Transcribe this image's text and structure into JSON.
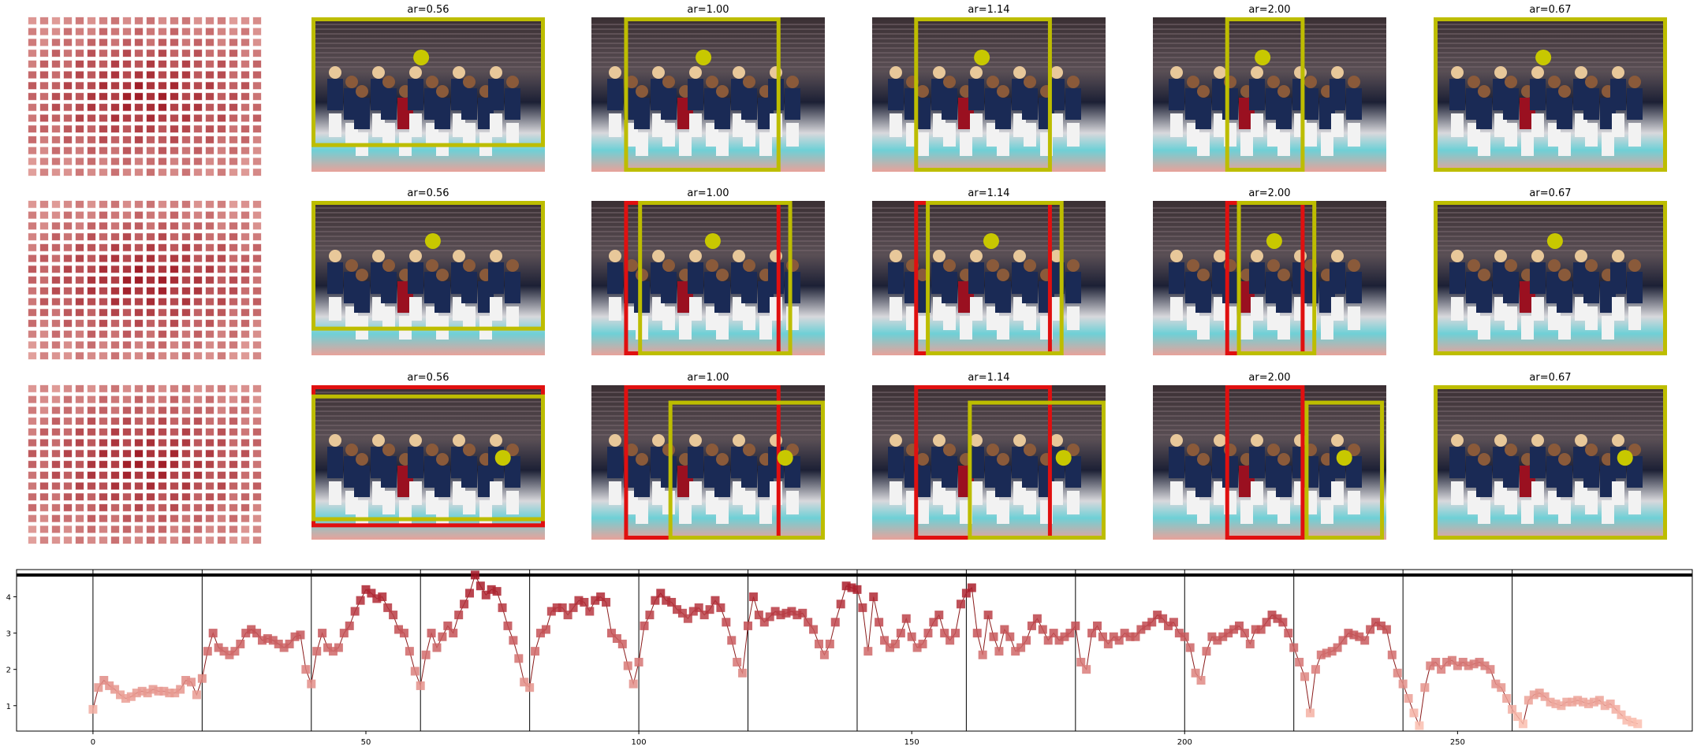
{
  "panels": {
    "rows": [
      {
        "titles": [
          "ar=0.56",
          "ar=1.00",
          "ar=1.14",
          "ar=2.00",
          "ar=0.67"
        ]
      },
      {
        "titles": [
          "ar=0.56",
          "ar=1.00",
          "ar=1.14",
          "ar=2.00",
          "ar=0.67"
        ]
      },
      {
        "titles": [
          "ar=0.56",
          "ar=1.00",
          "ar=1.14",
          "ar=2.00",
          "ar=0.67"
        ]
      }
    ],
    "colors": {
      "yellow": "#bdbd00",
      "red": "#e01010",
      "dot": "#c8c800"
    }
  },
  "chart_data": {
    "type": "line",
    "xlim": [
      -14,
      293
    ],
    "ylim": [
      0.3,
      4.75
    ],
    "xticks": [
      0,
      50,
      100,
      150,
      200,
      250
    ],
    "yticks": [
      1,
      2,
      3,
      4
    ],
    "vlines": [
      0,
      20,
      40,
      60,
      80,
      100,
      120,
      140,
      160,
      180,
      200,
      220,
      240,
      260
    ],
    "hline": 4.6,
    "y": [
      0.9,
      1.5,
      1.7,
      1.55,
      1.45,
      1.3,
      1.2,
      1.25,
      1.35,
      1.4,
      1.35,
      1.45,
      1.4,
      1.4,
      1.35,
      1.35,
      1.45,
      1.7,
      1.65,
      1.3,
      1.75,
      2.5,
      3.0,
      2.6,
      2.5,
      2.4,
      2.5,
      2.7,
      3.0,
      3.1,
      3.0,
      2.8,
      2.85,
      2.8,
      2.7,
      2.6,
      2.7,
      2.9,
      2.95,
      2.0,
      1.6,
      2.5,
      3.0,
      2.6,
      2.5,
      2.6,
      3.0,
      3.2,
      3.6,
      3.9,
      4.2,
      4.1,
      3.95,
      4.0,
      3.7,
      3.5,
      3.1,
      3.0,
      2.5,
      1.95,
      1.55,
      2.4,
      3.0,
      2.6,
      2.9,
      3.2,
      3.0,
      3.5,
      3.8,
      4.1,
      4.6,
      4.3,
      4.05,
      4.2,
      4.15,
      3.7,
      3.2,
      2.8,
      2.3,
      1.65,
      1.5,
      2.5,
      3.0,
      3.1,
      3.6,
      3.7,
      3.7,
      3.5,
      3.7,
      3.9,
      3.85,
      3.6,
      3.9,
      4.0,
      3.85,
      3.0,
      2.85,
      2.7,
      2.1,
      1.6,
      2.2,
      3.2,
      3.5,
      3.9,
      4.1,
      3.9,
      3.85,
      3.65,
      3.55,
      3.4,
      3.6,
      3.7,
      3.5,
      3.65,
      3.9,
      3.7,
      3.3,
      2.8,
      2.2,
      1.9,
      3.2,
      4.0,
      3.5,
      3.3,
      3.45,
      3.6,
      3.5,
      3.55,
      3.6,
      3.5,
      3.55,
      3.3,
      3.1,
      2.7,
      2.4,
      2.7,
      3.3,
      3.8,
      4.3,
      4.25,
      4.2,
      3.7,
      2.5,
      4.0,
      3.3,
      2.8,
      2.6,
      2.7,
      3.0,
      3.4,
      2.9,
      2.6,
      2.7,
      3.0,
      3.3,
      3.5,
      3.0,
      2.8,
      3.0,
      3.8,
      4.1,
      4.25,
      3.0,
      2.4,
      3.5,
      2.9,
      2.5,
      3.1,
      2.9,
      2.5,
      2.6,
      2.8,
      3.2,
      3.4,
      3.1,
      2.8,
      3.0,
      2.8,
      2.9,
      3.0,
      3.2,
      2.2,
      2.0,
      3.0,
      3.2,
      2.9,
      2.7,
      2.9,
      2.8,
      3.0,
      2.9,
      2.9,
      3.1,
      3.2,
      3.3,
      3.5,
      3.4,
      3.2,
      3.3,
      3.0,
      2.9,
      2.6,
      1.9,
      1.7,
      2.5,
      2.9,
      2.8,
      2.9,
      3.0,
      3.1,
      3.2,
      3.0,
      2.7,
      3.1,
      3.1,
      3.3,
      3.5,
      3.4,
      3.3,
      3.0,
      2.6,
      2.2,
      1.8,
      0.8,
      2.0,
      2.4,
      2.45,
      2.5,
      2.6,
      2.8,
      3.0,
      2.95,
      2.9,
      2.8,
      3.1,
      3.3,
      3.2,
      3.1,
      2.4,
      1.9,
      1.6,
      1.2,
      0.8,
      0.45,
      1.5,
      2.1,
      2.2,
      2.0,
      2.2,
      2.25,
      2.1,
      2.2,
      2.1,
      2.15,
      2.2,
      2.1,
      2.0,
      1.6,
      1.5,
      1.2,
      0.9,
      0.7,
      0.5,
      1.15,
      1.3,
      1.35,
      1.25,
      1.1,
      1.05,
      1.0,
      1.1,
      1.1,
      1.15,
      1.1,
      1.05,
      1.1,
      1.15,
      1.0,
      1.05,
      0.9,
      0.75,
      0.6,
      0.55,
      0.5
    ]
  }
}
